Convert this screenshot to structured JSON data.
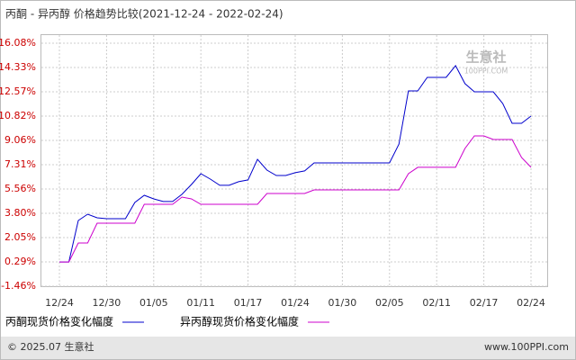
{
  "chart_data": {
    "type": "line",
    "title": "丙酮 - 异丙醇 价格趋势比较(2021-12-24 - 2022-02-24)",
    "categories": [
      "12/24",
      null,
      null,
      null,
      null,
      "12/30",
      null,
      null,
      null,
      null,
      "01/05",
      null,
      null,
      null,
      null,
      "01/11",
      null,
      null,
      null,
      null,
      "01/17",
      null,
      null,
      null,
      null,
      "01/24",
      null,
      null,
      null,
      null,
      "01/30",
      null,
      null,
      null,
      null,
      "02/05",
      null,
      null,
      null,
      null,
      "02/11",
      null,
      null,
      null,
      null,
      "02/17",
      null,
      null,
      null,
      null,
      "02/24"
    ],
    "series": [
      {
        "name": "丙酮现货价格变化幅度",
        "color": "#0000cc",
        "values": [
          0.29,
          0.29,
          3.28,
          3.74,
          3.48,
          3.41,
          3.41,
          3.41,
          4.58,
          5.1,
          4.84,
          4.65,
          4.65,
          5.17,
          5.88,
          6.66,
          6.27,
          5.82,
          5.82,
          6.08,
          6.21,
          7.7,
          6.92,
          6.53,
          6.53,
          6.73,
          6.86,
          7.44,
          7.44,
          7.44,
          7.44,
          7.44,
          7.44,
          7.44,
          7.44,
          7.44,
          8.8,
          12.64,
          12.64,
          13.61,
          13.61,
          13.61,
          14.46,
          13.16,
          12.57,
          12.57,
          12.57,
          11.73,
          10.3,
          10.3,
          10.82
        ]
      },
      {
        "name": "异丙醇现货价格变化幅度",
        "color": "#cc00cc",
        "values": [
          0.29,
          0.29,
          1.66,
          1.66,
          3.09,
          3.09,
          3.09,
          3.09,
          3.09,
          4.45,
          4.45,
          4.45,
          4.45,
          4.97,
          4.84,
          4.45,
          4.45,
          4.45,
          4.45,
          4.45,
          4.45,
          4.45,
          5.23,
          5.23,
          5.23,
          5.23,
          5.23,
          5.49,
          5.49,
          5.49,
          5.49,
          5.49,
          5.49,
          5.49,
          5.49,
          5.49,
          5.49,
          6.66,
          7.12,
          7.12,
          7.12,
          7.12,
          7.12,
          8.48,
          9.39,
          9.39,
          9.13,
          9.13,
          9.13,
          7.83,
          7.12
        ]
      }
    ],
    "ylim": [
      -1.46,
      16.08
    ],
    "yticks": [
      {
        "value": -1.46,
        "label": "-1.46%"
      },
      {
        "value": 0.29,
        "label": "0.29%"
      },
      {
        "value": 2.05,
        "label": "2.05%"
      },
      {
        "value": 3.8,
        "label": "3.80%"
      },
      {
        "value": 5.56,
        "label": "5.56%"
      },
      {
        "value": 7.31,
        "label": "7.31%"
      },
      {
        "value": 9.06,
        "label": "9.06%"
      },
      {
        "value": 10.82,
        "label": "10.82%"
      },
      {
        "value": 12.57,
        "label": "12.57%"
      },
      {
        "value": 14.33,
        "label": "14.33%"
      },
      {
        "value": 16.08,
        "label": "16.08%"
      }
    ],
    "grid": true,
    "watermark": {
      "brand": "生意社",
      "site": "100PPI.COM"
    },
    "footer": {
      "copyright": "© 2025.07 生意社",
      "website": "www.100PPI.com"
    }
  }
}
